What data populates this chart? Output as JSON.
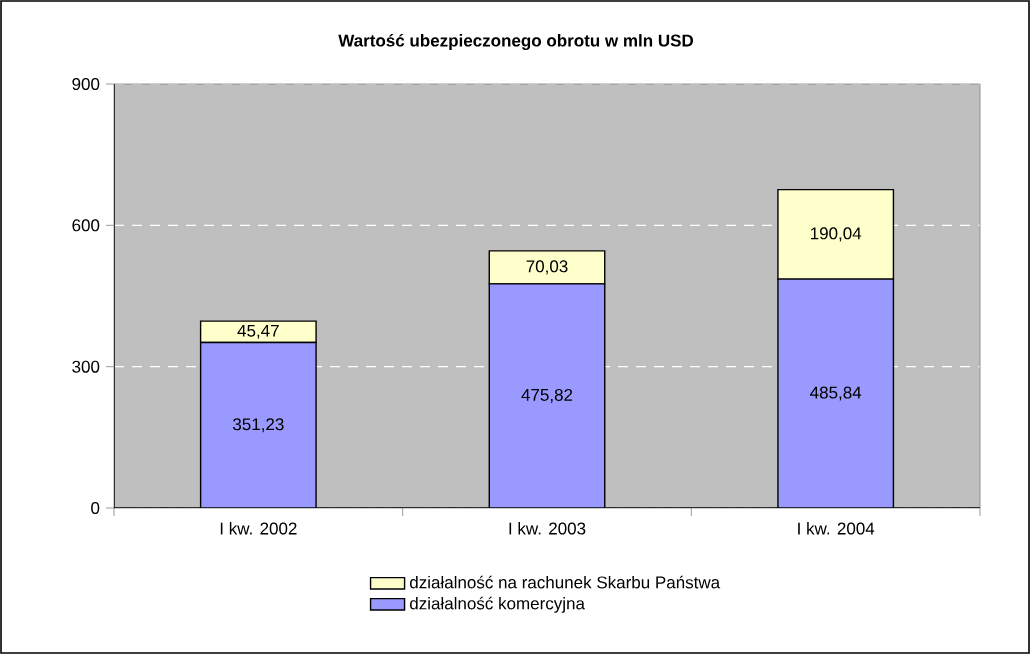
{
  "chart_data": {
    "type": "bar",
    "stacked": true,
    "title": "Wartość ubezpieczonego obrotu w mln USD",
    "categories": [
      "I kw. 2002",
      "I kw. 2003",
      "I kw. 2004"
    ],
    "series": [
      {
        "name": "działalność komercyjna",
        "color": "#9999ff",
        "values": [
          351.23,
          475.82,
          485.84
        ],
        "value_labels": [
          "351,23",
          "475,82",
          "485,84"
        ]
      },
      {
        "name": "działalność na rachunek Skarbu Państwa",
        "color": "#ffffcc",
        "values": [
          45.47,
          70.03,
          190.04
        ],
        "value_labels": [
          "45,47",
          "70,03",
          "190,04"
        ]
      }
    ],
    "ylim": [
      0,
      900
    ],
    "yticks": [
      0,
      300,
      600,
      900
    ],
    "grid": "y",
    "legend": "bottom"
  }
}
